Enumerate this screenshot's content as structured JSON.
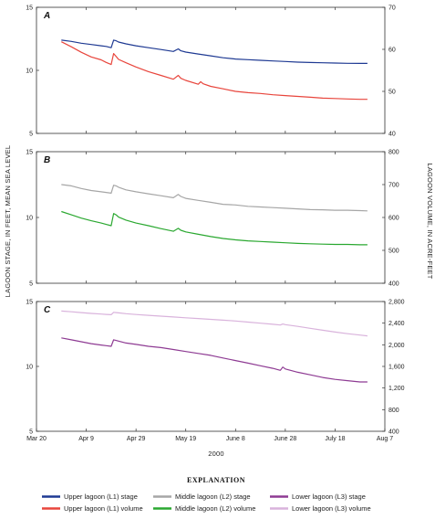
{
  "chart_data": [
    {
      "type": "line",
      "panel_label": "A",
      "xlim_day": [
        0,
        140
      ],
      "ylim_left": [
        5,
        15
      ],
      "ylim_right": [
        40,
        70
      ],
      "left_ticks": [
        "5",
        "10",
        "15"
      ],
      "right_ticks": [
        "40",
        "50",
        "60",
        "70"
      ],
      "series": [
        {
          "name": "Upper lagoon (L1) stage",
          "axis": "left",
          "color": "#1f3a93",
          "x": [
            10,
            14,
            18,
            22,
            26,
            28,
            30,
            31,
            32,
            33,
            36,
            40,
            45,
            50,
            55,
            57,
            58,
            60,
            65,
            70,
            75,
            80,
            85,
            90,
            95,
            100,
            105,
            110,
            115,
            120,
            125,
            130,
            133
          ],
          "y": [
            12.4,
            12.3,
            12.15,
            12.05,
            11.95,
            11.9,
            11.8,
            12.4,
            12.35,
            12.25,
            12.1,
            11.95,
            11.8,
            11.65,
            11.5,
            11.7,
            11.55,
            11.45,
            11.3,
            11.15,
            11.0,
            10.9,
            10.85,
            10.8,
            10.75,
            10.7,
            10.65,
            10.62,
            10.6,
            10.58,
            10.56,
            10.55,
            10.55
          ]
        },
        {
          "name": "Upper lagoon (L1) volume",
          "axis": "right",
          "color": "#e8453c",
          "x": [
            10,
            14,
            18,
            22,
            26,
            28,
            30,
            31,
            32,
            33,
            36,
            40,
            45,
            50,
            55,
            57,
            58,
            60,
            65,
            66,
            67,
            70,
            75,
            80,
            85,
            90,
            95,
            100,
            105,
            110,
            115,
            120,
            125,
            130,
            133
          ],
          "y": [
            61.8,
            60.6,
            59.3,
            58.2,
            57.5,
            56.9,
            56.4,
            59.0,
            58.3,
            57.6,
            56.8,
            55.8,
            54.7,
            53.8,
            52.9,
            53.8,
            53.1,
            52.6,
            51.7,
            52.3,
            51.8,
            51.2,
            50.6,
            50.0,
            49.7,
            49.5,
            49.2,
            49.0,
            48.8,
            48.6,
            48.4,
            48.3,
            48.2,
            48.1,
            48.1
          ]
        }
      ]
    },
    {
      "type": "line",
      "panel_label": "B",
      "xlim_day": [
        0,
        140
      ],
      "ylim_left": [
        5,
        15
      ],
      "ylim_right": [
        400,
        800
      ],
      "left_ticks": [
        "5",
        "10",
        "15"
      ],
      "right_ticks": [
        "400",
        "500",
        "600",
        "700",
        "800"
      ],
      "series": [
        {
          "name": "Middle lagoon (L2) stage",
          "axis": "left",
          "color": "#a6a6a6",
          "x": [
            10,
            14,
            18,
            22,
            26,
            28,
            30,
            31,
            32,
            33,
            36,
            40,
            45,
            50,
            55,
            57,
            58,
            60,
            65,
            70,
            75,
            80,
            85,
            90,
            95,
            100,
            105,
            110,
            115,
            120,
            125,
            130,
            133
          ],
          "y": [
            12.5,
            12.4,
            12.2,
            12.05,
            11.95,
            11.9,
            11.85,
            12.45,
            12.4,
            12.3,
            12.1,
            11.95,
            11.8,
            11.65,
            11.5,
            11.75,
            11.6,
            11.45,
            11.3,
            11.15,
            11.0,
            10.95,
            10.85,
            10.8,
            10.75,
            10.7,
            10.65,
            10.6,
            10.58,
            10.55,
            10.55,
            10.52,
            10.5
          ]
        },
        {
          "name": "Middle lagoon (L2) volume",
          "axis": "right",
          "color": "#2aa830",
          "x": [
            10,
            14,
            18,
            22,
            26,
            28,
            30,
            31,
            32,
            33,
            36,
            40,
            45,
            50,
            55,
            57,
            58,
            60,
            65,
            70,
            75,
            80,
            85,
            90,
            95,
            100,
            105,
            110,
            115,
            120,
            125,
            130,
            133
          ],
          "y": [
            618,
            608,
            598,
            590,
            583,
            579,
            575,
            612,
            608,
            601,
            592,
            583,
            575,
            566,
            558,
            567,
            561,
            556,
            549,
            542,
            536,
            532,
            529,
            527,
            525,
            523,
            521,
            520,
            519,
            518,
            518,
            517,
            517
          ]
        }
      ]
    },
    {
      "type": "line",
      "panel_label": "C",
      "xlim_day": [
        0,
        140
      ],
      "ylim_left": [
        5,
        15
      ],
      "ylim_right": [
        400,
        2800
      ],
      "left_ticks": [
        "5",
        "10",
        "15"
      ],
      "right_ticks": [
        "400",
        "800",
        "1,200",
        "1,600",
        "2,000",
        "2,400",
        "2,800"
      ],
      "series": [
        {
          "name": "Lower lagoon (L3) stage",
          "axis": "left",
          "color": "#8e3b93",
          "x": [
            10,
            14,
            18,
            22,
            26,
            28,
            30,
            31,
            32,
            33,
            36,
            40,
            45,
            50,
            55,
            60,
            65,
            70,
            75,
            80,
            85,
            90,
            95,
            98,
            99,
            100,
            105,
            110,
            115,
            120,
            125,
            130,
            133
          ],
          "y": [
            12.2,
            12.05,
            11.9,
            11.75,
            11.65,
            11.6,
            11.55,
            12.05,
            12.0,
            11.95,
            11.8,
            11.7,
            11.55,
            11.45,
            11.3,
            11.15,
            11.0,
            10.85,
            10.65,
            10.45,
            10.25,
            10.05,
            9.85,
            9.7,
            9.95,
            9.8,
            9.55,
            9.35,
            9.15,
            9.0,
            8.9,
            8.8,
            8.8
          ]
        },
        {
          "name": "Lower lagoon (L3) volume",
          "axis": "right",
          "color": "#d9b3dc",
          "x": [
            10,
            14,
            18,
            22,
            26,
            28,
            30,
            31,
            32,
            33,
            36,
            40,
            45,
            50,
            55,
            60,
            65,
            70,
            75,
            80,
            85,
            90,
            95,
            98,
            99,
            100,
            105,
            110,
            115,
            120,
            125,
            130,
            133
          ],
          "y": [
            2625,
            2610,
            2595,
            2580,
            2568,
            2562,
            2556,
            2600,
            2595,
            2590,
            2575,
            2560,
            2545,
            2530,
            2515,
            2500,
            2485,
            2470,
            2455,
            2440,
            2420,
            2400,
            2380,
            2365,
            2385,
            2372,
            2340,
            2305,
            2270,
            2235,
            2205,
            2180,
            2165
          ]
        }
      ]
    }
  ],
  "axes": {
    "x_ticks": [
      {
        "day": 0,
        "label": "Mar 20"
      },
      {
        "day": 20,
        "label": "Apr 9"
      },
      {
        "day": 40,
        "label": "Apr 29"
      },
      {
        "day": 60,
        "label": "May 19"
      },
      {
        "day": 80,
        "label": "June 8"
      },
      {
        "day": 100,
        "label": "June 28"
      },
      {
        "day": 120,
        "label": "July 18"
      },
      {
        "day": 140,
        "label": "Aug 7"
      }
    ],
    "x_title": "2000",
    "y_left_title": "LAGOON STAGE, IN FEET, MEAN SEA LEVEL",
    "y_right_title": "LAGOON VOLUME, IN ACRE-FEET"
  },
  "legend": {
    "title": "EXPLANATION",
    "items": [
      {
        "label": "Upper lagoon (L1) stage",
        "color": "#1f3a93"
      },
      {
        "label": "Upper lagoon (L1) volume",
        "color": "#e8453c"
      },
      {
        "label": "Middle lagoon (L2) stage",
        "color": "#a6a6a6"
      },
      {
        "label": "Middle lagoon (L2) volume",
        "color": "#2aa830"
      },
      {
        "label": "Lower lagoon (L3) stage",
        "color": "#8e3b93"
      },
      {
        "label": "Lower lagoon (L3) volume",
        "color": "#d9b3dc"
      }
    ]
  }
}
